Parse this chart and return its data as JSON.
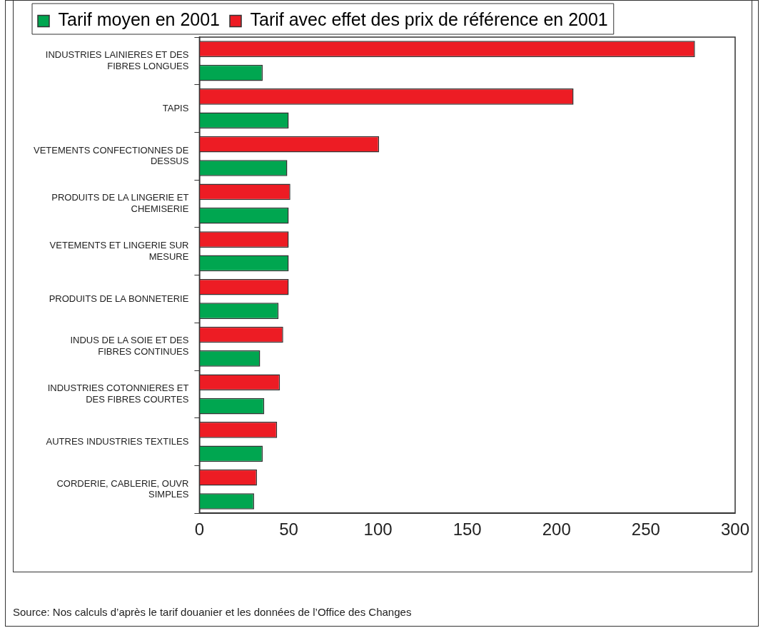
{
  "chart_data": {
    "type": "bar",
    "orientation": "horizontal",
    "categories": [
      "INDUSTRIES LAINIERES ET DES FIBRES LONGUES",
      "TAPIS",
      "VETEMENTS CONFECTIONNES DE DESSUS",
      "PRODUITS DE LA LINGERIE ET CHEMISERIE",
      "VETEMENTS ET LINGERIE SUR MESURE",
      "PRODUITS DE LA BONNETERIE",
      "INDUS DE LA SOIE ET DES FIBRES CONTINUES",
      "INDUSTRIES COTONNIERES ET DES FIBRES COURTES",
      "AUTRES INDUSTRIES TEXTILES",
      "CORDERIE, CABLERIE, OUVR SIMPLES"
    ],
    "series": [
      {
        "name": "Tarif moyen en 2001",
        "color": "#00a650",
        "values": [
          35.4,
          50,
          49.2,
          50,
          50,
          44.3,
          34,
          36.3,
          35.4,
          30.6
        ]
      },
      {
        "name": "Tarif avec effet des prix de référence en 2001",
        "color": "#ed1c24",
        "values": [
          277.5,
          209.5,
          100.6,
          50.9,
          50,
          50,
          46.9,
          45.1,
          43.5,
          32.2
        ]
      }
    ],
    "xlim": [
      0,
      300
    ],
    "xticks": [
      0,
      50,
      100,
      150,
      200,
      250,
      300
    ],
    "grid": false,
    "legend": "top left",
    "annotations": [
      "Source: Nos calculs d’après le tarif douanier et les données de l’Office des Changes"
    ]
  }
}
